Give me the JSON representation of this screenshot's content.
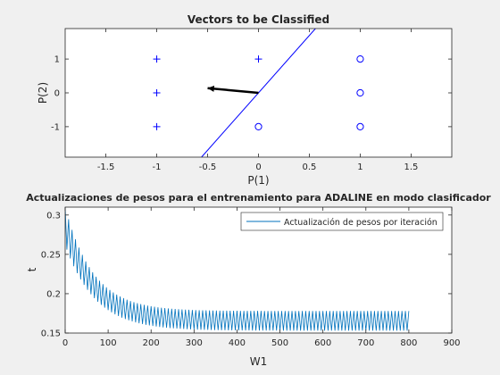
{
  "chart_data": [
    {
      "type": "scatter",
      "title": "Vectors to be Classified",
      "xlabel": "P(1)",
      "ylabel": "P(2)",
      "xlim": [
        -1.9,
        1.9
      ],
      "ylim": [
        -1.9,
        1.9
      ],
      "xticks": [
        -1.5,
        -1,
        -0.5,
        0,
        0.5,
        1,
        1.5
      ],
      "yticks": [
        -1,
        0,
        1
      ],
      "xtick_labels": [
        "-1.5",
        "-1",
        "-0.5",
        "0",
        "0.5",
        "1",
        "1.5"
      ],
      "ytick_labels": [
        "-1",
        "0",
        "1"
      ],
      "grid": false,
      "color": "#0000ff",
      "plus_points": [
        {
          "x": -1,
          "y": 1
        },
        {
          "x": 0,
          "y": 1
        },
        {
          "x": -1,
          "y": 0
        },
        {
          "x": -1,
          "y": -1
        }
      ],
      "circle_points": [
        {
          "x": 1,
          "y": 1
        },
        {
          "x": 1,
          "y": 0
        },
        {
          "x": 1,
          "y": -1
        },
        {
          "x": 0,
          "y": -1
        }
      ],
      "boundary_line": {
        "x1": -0.56,
        "y1": -1.9,
        "x2": 0.56,
        "y2": 1.9
      },
      "weight_vector": {
        "x1": 0,
        "y1": 0,
        "x2": -0.5,
        "y2": 0.14
      }
    },
    {
      "type": "line",
      "title": "Actualizaciones de pesos para el entrenamiento para ADALINE en modo clasificador",
      "xlabel": "W1",
      "ylabel": "t",
      "xlim": [
        0,
        900
      ],
      "ylim": [
        0.15,
        0.31
      ],
      "xticks": [
        0,
        100,
        200,
        300,
        400,
        500,
        600,
        700,
        800,
        900
      ],
      "yticks": [
        0.15,
        0.2,
        0.25,
        0.3
      ],
      "xtick_labels": [
        "0",
        "100",
        "200",
        "300",
        "400",
        "500",
        "600",
        "700",
        "800",
        "900"
      ],
      "ytick_labels": [
        "0.15",
        "0.2",
        "0.25",
        "0.3"
      ],
      "legend_position": "top-right",
      "grid": false,
      "series": [
        {
          "name": "Actualización de pesos por iteración",
          "color": "#0072bd",
          "n_points": 800,
          "period": 8,
          "upper_envelope": {
            "start": 0.31,
            "end": 0.178,
            "decay": 65
          },
          "lower_envelope": {
            "start": 0.262,
            "end": 0.153,
            "decay": 70
          }
        }
      ]
    }
  ]
}
